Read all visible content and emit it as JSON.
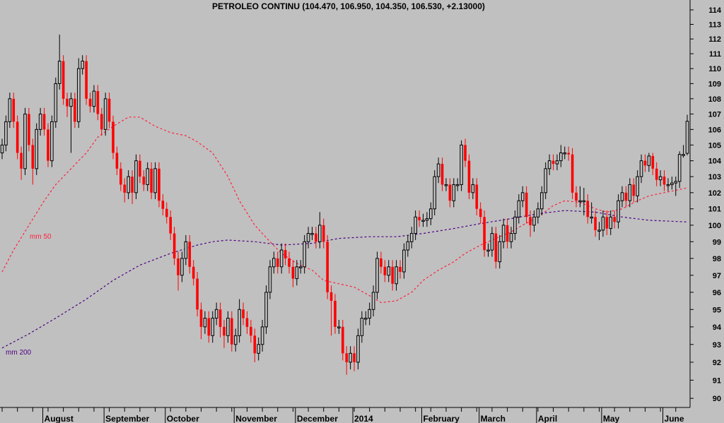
{
  "chart_data": {
    "type": "candlestick",
    "title": "PETROLEO CONTINU (104.470, 106.950, 104.350, 106.530, +2.13000)",
    "y_scale": "log",
    "ylim": [
      89.5,
      114.5
    ],
    "y_ticks": [
      90,
      91,
      92,
      93,
      94,
      95,
      96,
      97,
      98,
      99,
      100,
      101,
      102,
      103,
      104,
      105,
      106,
      107,
      108,
      109,
      110,
      111,
      112,
      113,
      114
    ],
    "grid": false,
    "colors": {
      "background": "#c0c0c0",
      "up": "#000000",
      "down": "#ff0000",
      "mm50": "#ff2040",
      "mm200": "#4b0082"
    },
    "x_ticks": [
      {
        "label": "August",
        "index": 11
      },
      {
        "label": "September",
        "index": 27
      },
      {
        "label": "October",
        "index": 43
      },
      {
        "label": "November",
        "index": 61
      },
      {
        "label": "December",
        "index": 77
      },
      {
        "label": "2014",
        "index": 92
      },
      {
        "label": "February",
        "index": 110
      },
      {
        "label": "March",
        "index": 125
      },
      {
        "label": "April",
        "index": 140
      },
      {
        "label": "May",
        "index": 157
      },
      {
        "label": "June",
        "index": 173
      }
    ],
    "candles_ohlc": [
      [
        104.5,
        105.4,
        104.1,
        105
      ],
      [
        105,
        106.9,
        104.6,
        106.5
      ],
      [
        106.5,
        108.4,
        106.1,
        108
      ],
      [
        108,
        108.4,
        106.1,
        106.5
      ],
      [
        106.5,
        106.9,
        104.1,
        104.5
      ],
      [
        104.5,
        104.9,
        102.8,
        103.5
      ],
      [
        103.5,
        107.4,
        103.1,
        107
      ],
      [
        107,
        107.4,
        104.6,
        105
      ],
      [
        105,
        105.4,
        102.5,
        103.5
      ],
      [
        103.5,
        106.4,
        103.1,
        106
      ],
      [
        106,
        107.4,
        105.6,
        107
      ],
      [
        107,
        107.4,
        105.6,
        106
      ],
      [
        106,
        106.4,
        103.6,
        104
      ],
      [
        104,
        106.9,
        103.6,
        106.5
      ],
      [
        106.5,
        109.4,
        106.1,
        109
      ],
      [
        109,
        112.3,
        108.6,
        110.5
      ],
      [
        110.5,
        110.9,
        107.6,
        108
      ],
      [
        108,
        108.4,
        106.8,
        107.5
      ],
      [
        107.5,
        108.4,
        104.5,
        108
      ],
      [
        108,
        108.4,
        106.1,
        106.5
      ],
      [
        106.5,
        110.7,
        106.1,
        110
      ],
      [
        110,
        110.9,
        109.6,
        110.5
      ],
      [
        110.5,
        110.9,
        107.6,
        108
      ],
      [
        108,
        108.4,
        107.1,
        107.5
      ],
      [
        107.5,
        108.9,
        107.1,
        108.5
      ],
      [
        108.5,
        108.9,
        106.6,
        107
      ],
      [
        107,
        107.4,
        105.6,
        106
      ],
      [
        106,
        108.4,
        105.6,
        108
      ],
      [
        108,
        108.4,
        106.1,
        106.5
      ],
      [
        106.5,
        106.9,
        104.1,
        104.5
      ],
      [
        104.5,
        104.9,
        103.1,
        103.5
      ],
      [
        103.5,
        103.9,
        102.1,
        102.5
      ],
      [
        102.5,
        102.9,
        101.4,
        102
      ],
      [
        102,
        103.4,
        101.6,
        103
      ],
      [
        103,
        103.4,
        101.3,
        102
      ],
      [
        102,
        104.4,
        101.6,
        104
      ],
      [
        104,
        104.4,
        102.6,
        103
      ],
      [
        103,
        103.4,
        102.1,
        102.5
      ],
      [
        102.5,
        103.9,
        102.1,
        103.5
      ],
      [
        103.5,
        103.9,
        101.6,
        102
      ],
      [
        102,
        103.9,
        101.6,
        103.5
      ],
      [
        103.5,
        103.9,
        101.1,
        101.5
      ],
      [
        101.5,
        101.9,
        100.6,
        101
      ],
      [
        101,
        101.4,
        100.1,
        100.5
      ],
      [
        100.5,
        100.9,
        99.1,
        99.5
      ],
      [
        99.5,
        99.9,
        97.6,
        98
      ],
      [
        98,
        98.4,
        96.1,
        97
      ],
      [
        97,
        98.4,
        96.6,
        98
      ],
      [
        98,
        99.4,
        97.6,
        99
      ],
      [
        99,
        99.4,
        97.1,
        97.5
      ],
      [
        97.5,
        97.9,
        96.4,
        96.8
      ],
      [
        96.8,
        97.2,
        94.6,
        95
      ],
      [
        95,
        95.4,
        93.3,
        94
      ],
      [
        94,
        94.9,
        93.6,
        94.5
      ],
      [
        94.5,
        94.9,
        93.1,
        93.5
      ],
      [
        93.5,
        94.9,
        93.1,
        94.5
      ],
      [
        94.5,
        95.4,
        94.1,
        95
      ],
      [
        95,
        95.4,
        93.4,
        94
      ],
      [
        94,
        94.4,
        92.8,
        93.5
      ],
      [
        93.5,
        94.9,
        93.1,
        94.5
      ],
      [
        94.5,
        94.9,
        92.6,
        93
      ],
      [
        93,
        93.9,
        92.6,
        93.5
      ],
      [
        93.5,
        95.6,
        93.1,
        95
      ],
      [
        95,
        95.4,
        94.1,
        94.5
      ],
      [
        94.5,
        94.9,
        93.6,
        94
      ],
      [
        94,
        94.4,
        93.1,
        93.5
      ],
      [
        93.5,
        93.9,
        92,
        92.5
      ],
      [
        92.5,
        93.4,
        92.1,
        93
      ],
      [
        93,
        94.4,
        92.6,
        94
      ],
      [
        94,
        96.4,
        93.6,
        96
      ],
      [
        96,
        97.9,
        95.6,
        97.5
      ],
      [
        97.5,
        98.4,
        97.1,
        98
      ],
      [
        98,
        98.4,
        97.1,
        97.5
      ],
      [
        97.5,
        98.9,
        97.1,
        98.5
      ],
      [
        98.5,
        98.9,
        97.6,
        98
      ],
      [
        98,
        98.4,
        97.1,
        97.5
      ],
      [
        97.5,
        97.9,
        96.3,
        96.8
      ],
      [
        96.8,
        97.9,
        96.4,
        97.5
      ],
      [
        97.5,
        97.9,
        97.1,
        97.5
      ],
      [
        97.5,
        99.4,
        97.1,
        99
      ],
      [
        99,
        99.9,
        98.6,
        99.5
      ],
      [
        99.5,
        99.9,
        99.1,
        99.5
      ],
      [
        99.5,
        99.9,
        98.6,
        99
      ],
      [
        99,
        100.8,
        98.6,
        100
      ],
      [
        100,
        100.4,
        98.6,
        99
      ],
      [
        99,
        99.4,
        95.6,
        96
      ],
      [
        96,
        96.4,
        93.5,
        95.5
      ],
      [
        95.5,
        95.9,
        93.6,
        94
      ],
      [
        94,
        94.4,
        93.6,
        94
      ],
      [
        94,
        94.4,
        92.1,
        92.5
      ],
      [
        92.5,
        92.9,
        91.3,
        92
      ],
      [
        92,
        92.9,
        91.6,
        92.5
      ],
      [
        92.5,
        92.9,
        91.5,
        92
      ],
      [
        92,
        93.9,
        91.6,
        93.5
      ],
      [
        93.5,
        94.9,
        93.1,
        94.5
      ],
      [
        94.5,
        94.9,
        94.1,
        94.5
      ],
      [
        94.5,
        95.4,
        94.1,
        95
      ],
      [
        95,
        96.4,
        94.6,
        96
      ],
      [
        96,
        98.4,
        95.6,
        98
      ],
      [
        98,
        98.4,
        97.1,
        97.5
      ],
      [
        97.5,
        97.9,
        96.6,
        97
      ],
      [
        97,
        97.9,
        96.6,
        97.5
      ],
      [
        97.5,
        97.9,
        96.1,
        96.5
      ],
      [
        96.5,
        97.9,
        96.1,
        97.5
      ],
      [
        97.5,
        97.9,
        96.8,
        97.2
      ],
      [
        97.2,
        98.9,
        96.8,
        98.5
      ],
      [
        98.5,
        99.4,
        98.1,
        99
      ],
      [
        99,
        99.9,
        98.6,
        99.5
      ],
      [
        99.5,
        100.9,
        99.1,
        100.5
      ],
      [
        100.5,
        100.9,
        99.9,
        100.3
      ],
      [
        100.3,
        100.7,
        99.9,
        100.3
      ],
      [
        100.3,
        100.8,
        99.9,
        100.4
      ],
      [
        100.4,
        101.4,
        100,
        101
      ],
      [
        101,
        103.4,
        100.6,
        103
      ],
      [
        103,
        104.2,
        102.6,
        103.8
      ],
      [
        103.8,
        104.2,
        102.1,
        102.5
      ],
      [
        102.5,
        102.9,
        102.1,
        102.5
      ],
      [
        102.5,
        102.9,
        101.1,
        101.5
      ],
      [
        101.5,
        102.9,
        101.1,
        102.5
      ],
      [
        102.5,
        102.9,
        102.1,
        102.5
      ],
      [
        102.5,
        105.3,
        102.1,
        105
      ],
      [
        105,
        105.4,
        103.6,
        104
      ],
      [
        104,
        104.4,
        101.6,
        102
      ],
      [
        102,
        102.9,
        101.6,
        102.5
      ],
      [
        102.5,
        102.9,
        100.6,
        101
      ],
      [
        101,
        101.4,
        100.1,
        100.5
      ],
      [
        100.5,
        100.9,
        98.1,
        98.5
      ],
      [
        98.5,
        98.9,
        98.1,
        98.5
      ],
      [
        98.5,
        99.9,
        98.1,
        99.5
      ],
      [
        99.5,
        99.9,
        97.4,
        97.8
      ],
      [
        97.8,
        99.4,
        97.4,
        99
      ],
      [
        99,
        100.4,
        98.6,
        100
      ],
      [
        100,
        100.4,
        98.6,
        99
      ],
      [
        99,
        99.9,
        98.6,
        99.5
      ],
      [
        99.5,
        100.9,
        99.1,
        100.5
      ],
      [
        100.5,
        101.9,
        100.1,
        101.5
      ],
      [
        101.5,
        102.4,
        101.1,
        102
      ],
      [
        102,
        102.4,
        100.1,
        100.5
      ],
      [
        100.5,
        100.9,
        99.3,
        100
      ],
      [
        100,
        100.9,
        99.6,
        100.5
      ],
      [
        100.5,
        101.4,
        100.1,
        101
      ],
      [
        101,
        102.4,
        100.6,
        102
      ],
      [
        102,
        103.9,
        101.6,
        103.5
      ],
      [
        103.5,
        104.4,
        103.1,
        104
      ],
      [
        104,
        104.4,
        103.4,
        103.8
      ],
      [
        103.8,
        104.4,
        103.4,
        104
      ],
      [
        104,
        105,
        103.6,
        104.5
      ],
      [
        104.5,
        104.9,
        104.1,
        104.5
      ],
      [
        104.5,
        104.9,
        104,
        104.4
      ],
      [
        104.4,
        104.8,
        101.6,
        102
      ],
      [
        102,
        102.4,
        101.1,
        101.5
      ],
      [
        101.5,
        102.4,
        101.1,
        101.5
      ],
      [
        101.5,
        102.3,
        100.6,
        101.5
      ],
      [
        101.5,
        101.9,
        100.1,
        100.5
      ],
      [
        100.5,
        101.4,
        100.1,
        100.5
      ],
      [
        100.5,
        100.9,
        99.3,
        99.7
      ],
      [
        99.7,
        100.2,
        99.1,
        99.7
      ],
      [
        99.7,
        100.9,
        99.3,
        100.5
      ],
      [
        100.5,
        100.9,
        99.4,
        99.8
      ],
      [
        99.8,
        100.9,
        99.4,
        100.5
      ],
      [
        100.5,
        100.9,
        99.8,
        100.2
      ],
      [
        100.2,
        101.9,
        99.8,
        101.5
      ],
      [
        101.5,
        102.4,
        101.1,
        102
      ],
      [
        102,
        102.4,
        101.1,
        101.5
      ],
      [
        101.5,
        102.9,
        101.1,
        102.5
      ],
      [
        102.5,
        102.9,
        101.4,
        101.8
      ],
      [
        101.8,
        103.4,
        101.4,
        103
      ],
      [
        103,
        104.4,
        102.6,
        104
      ],
      [
        104,
        104.4,
        103.3,
        103.7
      ],
      [
        103.7,
        104.5,
        103.3,
        104.3
      ],
      [
        104.3,
        104.5,
        103.1,
        103.5
      ],
      [
        103.5,
        103.9,
        102.4,
        102.8
      ],
      [
        102.8,
        103.4,
        102.4,
        103
      ],
      [
        103,
        103.4,
        102.1,
        102.5
      ],
      [
        102.5,
        102.9,
        102.1,
        102.5
      ],
      [
        102.5,
        103,
        102.2,
        102.6
      ],
      [
        102.6,
        103,
        101.8,
        102.7
      ],
      [
        102.7,
        104.6,
        102.3,
        104.4
      ],
      [
        104.4,
        105,
        104.2,
        104.4
      ],
      [
        104.47,
        106.95,
        104.35,
        106.53
      ]
    ],
    "series": [
      {
        "name": "mm 50",
        "points": [
          [
            0,
            97.2
          ],
          [
            3,
            98.5
          ],
          [
            7,
            100
          ],
          [
            11,
            101.5
          ],
          [
            14,
            102.5
          ],
          [
            18,
            103.5
          ],
          [
            22,
            104.5
          ],
          [
            25,
            105.5
          ],
          [
            29,
            106.2
          ],
          [
            33,
            106.8
          ],
          [
            36,
            106.8
          ],
          [
            40,
            106.2
          ],
          [
            44,
            105.8
          ],
          [
            48,
            105.6
          ],
          [
            51,
            105.2
          ],
          [
            55,
            104.5
          ],
          [
            59,
            103
          ],
          [
            62,
            101.5
          ],
          [
            66,
            100
          ],
          [
            70,
            99
          ],
          [
            73,
            98.3
          ],
          [
            77,
            97.7
          ],
          [
            81,
            97.3
          ],
          [
            84,
            96.7
          ],
          [
            88,
            96.5
          ],
          [
            92,
            96.3
          ],
          [
            96,
            95.8
          ],
          [
            99,
            95.4
          ],
          [
            103,
            95.5
          ],
          [
            107,
            96
          ],
          [
            110,
            96.7
          ],
          [
            114,
            97.3
          ],
          [
            118,
            97.8
          ],
          [
            121,
            98.3
          ],
          [
            125,
            98.8
          ],
          [
            129,
            99.2
          ],
          [
            133,
            99.6
          ],
          [
            136,
            100
          ],
          [
            140,
            100.5
          ],
          [
            144,
            101.2
          ],
          [
            147,
            101.5
          ],
          [
            151,
            101.4
          ],
          [
            155,
            101
          ],
          [
            158,
            100.8
          ],
          [
            162,
            101
          ],
          [
            166,
            101.5
          ],
          [
            169,
            101.8
          ],
          [
            173,
            102
          ],
          [
            177,
            102.2
          ],
          [
            179,
            102.3
          ]
        ]
      },
      {
        "name": "mm 200",
        "points": [
          [
            0,
            92.8
          ],
          [
            7,
            93.6
          ],
          [
            14,
            94.5
          ],
          [
            22,
            95.6
          ],
          [
            29,
            96.7
          ],
          [
            36,
            97.6
          ],
          [
            44,
            98.3
          ],
          [
            51,
            98.8
          ],
          [
            55,
            99
          ],
          [
            59,
            99.1
          ],
          [
            66,
            99
          ],
          [
            73,
            98.8
          ],
          [
            81,
            98.9
          ],
          [
            88,
            99.2
          ],
          [
            96,
            99.3
          ],
          [
            103,
            99.3
          ],
          [
            110,
            99.5
          ],
          [
            118,
            99.8
          ],
          [
            125,
            100.1
          ],
          [
            133,
            100.4
          ],
          [
            140,
            100.7
          ],
          [
            147,
            100.9
          ],
          [
            155,
            100.8
          ],
          [
            162,
            100.5
          ],
          [
            169,
            100.3
          ],
          [
            179,
            100.2
          ]
        ]
      }
    ]
  }
}
